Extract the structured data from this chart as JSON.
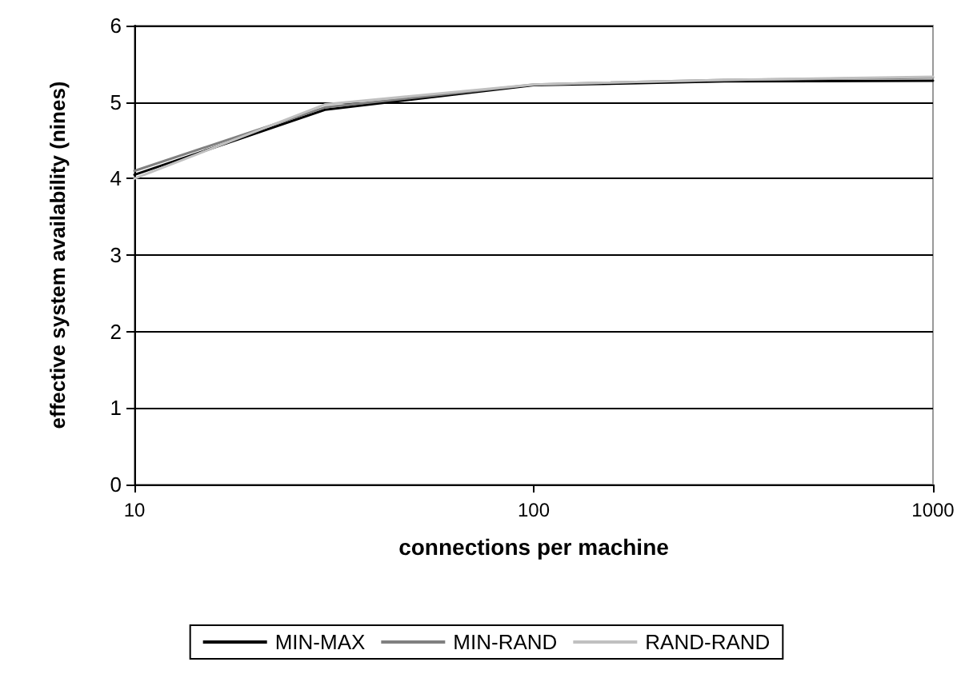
{
  "chart_data": {
    "type": "line",
    "xlabel": "connections per machine",
    "ylabel": "effective system availability (nines)",
    "log": "x",
    "xlim": [
      10,
      1000
    ],
    "xticks": [
      10,
      100,
      1000
    ],
    "ylim": [
      0,
      6
    ],
    "yticks": [
      0,
      1,
      2,
      3,
      4,
      5,
      6
    ],
    "grid": "y",
    "legend": "bottom",
    "marker": "none",
    "series": [
      {
        "name": "MIN-MAX",
        "color": "#000000",
        "x": [
          10,
          30,
          100,
          300,
          1000
        ],
        "values": [
          4.05,
          4.9,
          5.22,
          5.27,
          5.28
        ]
      },
      {
        "name": "MIN-RAND",
        "color": "#808080",
        "x": [
          10,
          30,
          100,
          300,
          1000
        ],
        "values": [
          4.1,
          4.93,
          5.23,
          5.29,
          5.32
        ]
      },
      {
        "name": "RAND-RAND",
        "color": "#c0c0c0",
        "x": [
          10,
          30,
          100,
          300,
          1000
        ],
        "values": [
          4.0,
          4.97,
          5.23,
          5.29,
          5.33
        ]
      }
    ]
  }
}
